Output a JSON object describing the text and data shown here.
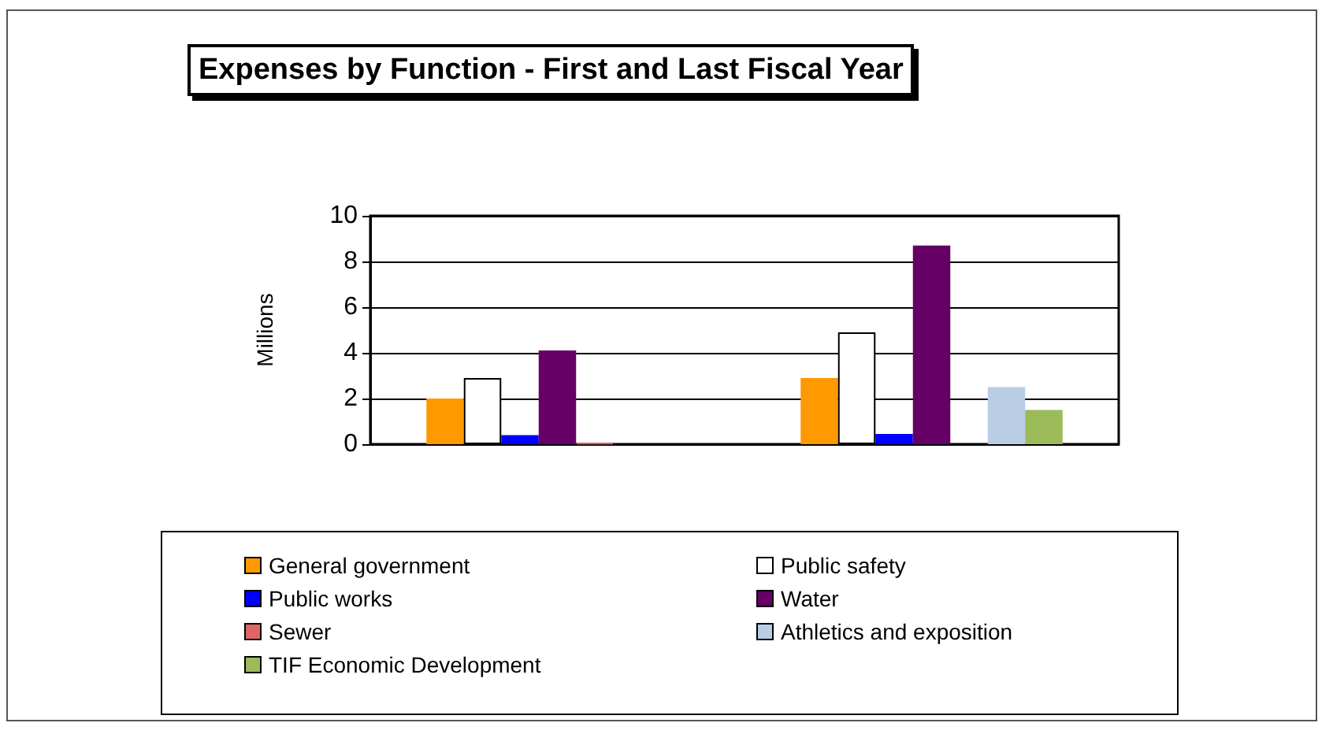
{
  "chart_data": {
    "type": "bar",
    "title": "Expenses by Function - First and Last Fiscal Year",
    "ylabel": "Millions",
    "categories": [
      null,
      null
    ],
    "series": [
      {
        "name": "General government",
        "color": "#ff9900",
        "values": [
          2.0,
          2.9
        ]
      },
      {
        "name": "Public safety",
        "color": "#ffffff",
        "values": [
          2.9,
          4.9
        ]
      },
      {
        "name": "Public works",
        "color": "#0000ff",
        "values": [
          0.4,
          0.45
        ]
      },
      {
        "name": "Water",
        "color": "#660066",
        "values": [
          4.1,
          8.7
        ]
      },
      {
        "name": "Sewer",
        "color": "#e06666",
        "values": [
          0.05,
          null
        ]
      },
      {
        "name": "Athletics and exposition",
        "color": "#b9cde5",
        "values": [
          null,
          2.5
        ]
      },
      {
        "name": "TIF Economic Development",
        "color": "#9bbb59",
        "values": [
          null,
          1.5
        ]
      }
    ],
    "ylim": [
      0,
      10
    ],
    "yticks": [
      0,
      2,
      4,
      6,
      8,
      10
    ],
    "grid": "y",
    "legend": "bottom"
  }
}
